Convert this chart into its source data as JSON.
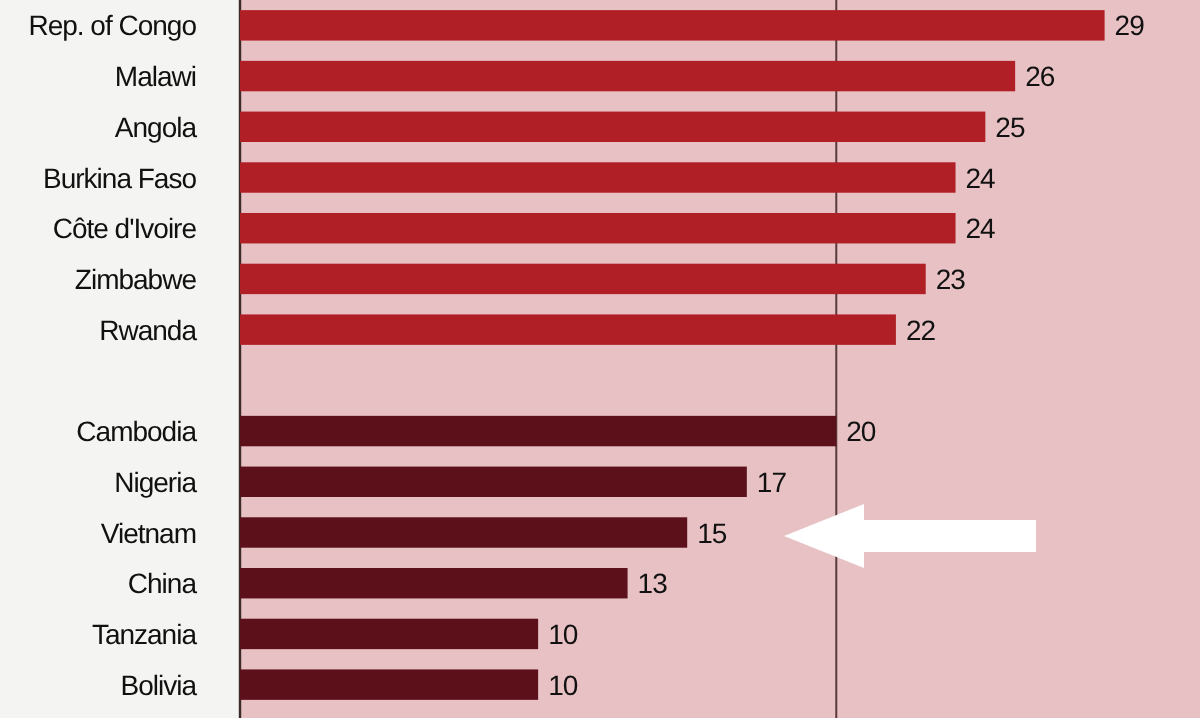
{
  "chart_data": {
    "type": "bar",
    "orientation": "horizontal",
    "categories": [
      "Rep. of Congo",
      "Malawi",
      "Angola",
      "Burkina Faso",
      "Côte d'Ivoire",
      "Zimbabwe",
      "Rwanda",
      null,
      "Cambodia",
      "Nigeria",
      "Vietnam",
      "China",
      "Tanzania",
      "Bolivia"
    ],
    "values": [
      29,
      26,
      25,
      24,
      24,
      23,
      22,
      null,
      20,
      17,
      15,
      13,
      10,
      10
    ],
    "colors": [
      "#b01e26",
      "#b01e26",
      "#b01e26",
      "#b01e26",
      "#b01e26",
      "#b01e26",
      "#b01e26",
      null,
      "#5c101a",
      "#5c101a",
      "#5c101a",
      "#5c101a",
      "#5c101a",
      "#5c101a"
    ],
    "xlim": [
      0,
      32.2
    ],
    "data_labels": true,
    "ref_lines": [
      {
        "axis": "x",
        "value": 20,
        "color": "#5a3a3a"
      }
    ]
  }
}
